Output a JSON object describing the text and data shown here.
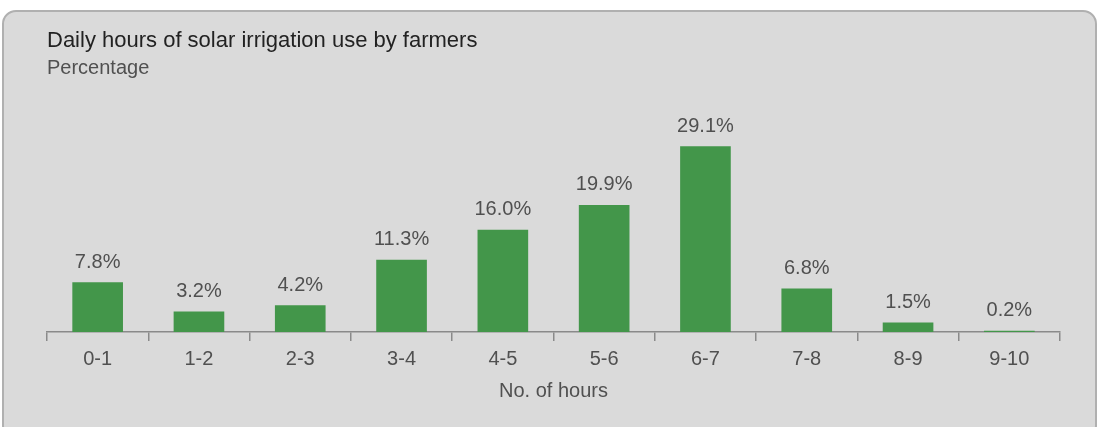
{
  "chart_data": {
    "type": "bar",
    "title": "Daily hours of solar irrigation use by farmers",
    "subtitle": "Percentage",
    "xlabel": "No. of hours",
    "categories": [
      "0-1",
      "1-2",
      "2-3",
      "3-4",
      "4-5",
      "5-6",
      "6-7",
      "7-8",
      "8-9",
      "9-10"
    ],
    "values": [
      7.8,
      3.2,
      4.2,
      11.3,
      16.0,
      19.9,
      29.1,
      6.8,
      1.5,
      0.2
    ],
    "value_labels": [
      "7.8%",
      "3.2%",
      "4.2%",
      "11.3%",
      "16.0%",
      "19.9%",
      "29.1%",
      "6.8%",
      "1.5%",
      "0.2%"
    ],
    "color": "#43964a",
    "grid": false,
    "legend": false
  }
}
